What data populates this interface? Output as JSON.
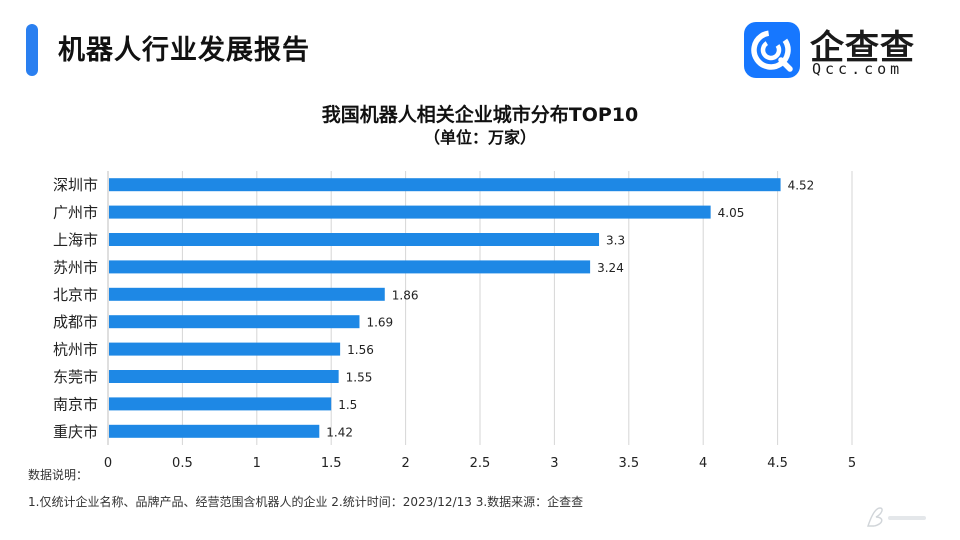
{
  "header": {
    "title": "机器人行业发展报告",
    "accent_color": "#2a7ff0"
  },
  "logo": {
    "cn_text": "企查查",
    "en_text": "Qcc.com",
    "badge_color": "#1677ff"
  },
  "chart_data": {
    "type": "bar",
    "orientation": "horizontal",
    "title": "我国机器人相关企业城市分布TOP10",
    "subtitle": "（单位：万家）",
    "categories": [
      "深圳市",
      "广州市",
      "上海市",
      "苏州市",
      "北京市",
      "成都市",
      "杭州市",
      "东莞市",
      "南京市",
      "重庆市"
    ],
    "values": [
      4.52,
      4.05,
      3.3,
      3.24,
      1.86,
      1.69,
      1.56,
      1.55,
      1.5,
      1.42
    ],
    "value_labels": [
      "4.52",
      "4.05",
      "3.3",
      "3.24",
      "1.86",
      "1.69",
      "1.56",
      "1.55",
      "1.5",
      "1.42"
    ],
    "xlim": [
      0,
      5
    ],
    "xticks": [
      "0",
      "0.5",
      "1",
      "1.5",
      "2",
      "2.5",
      "3",
      "3.5",
      "4",
      "4.5",
      "5"
    ],
    "bar_color": "#1e88e5",
    "grid": "vertical"
  },
  "notes": {
    "label": "数据说明：",
    "text": "1.仅统计企业名称、品牌产品、经营范围含机器人的企业   2.统计时间：2023/12/13    3.数据来源：企查查"
  }
}
